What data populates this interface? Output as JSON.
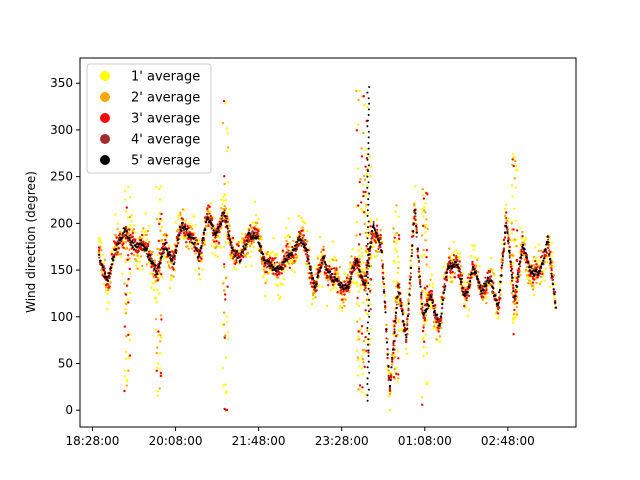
{
  "chart_data": {
    "type": "scatter",
    "title": "",
    "xlabel": "",
    "ylabel": "Wind direction (degree)",
    "x_ticks": [
      "18:28:00",
      "20:08:00",
      "21:48:00",
      "23:28:00",
      "01:08:00",
      "02:48:00"
    ],
    "x_tick_values": [
      "18:28:00",
      "20:08:00",
      "21:48:00",
      "23:28:00",
      "01:08:00",
      "02:48:00"
    ],
    "xlim": [
      "18:13:00",
      "04:10:00"
    ],
    "y_ticks": [
      0,
      50,
      100,
      150,
      200,
      250,
      300,
      350
    ],
    "ylim": [
      -18,
      377
    ],
    "grid": false,
    "legend_position": "top-left",
    "series": [
      {
        "name": "1' average",
        "color": "#ffff00"
      },
      {
        "name": "2' average",
        "color": "#ffa500"
      },
      {
        "name": "3' average",
        "color": "#ff0000"
      },
      {
        "name": "4' average",
        "color": "#a52a2a"
      },
      {
        "name": "5' average",
        "color": "#000000"
      }
    ],
    "trend": {
      "x": [
        "18:36:00",
        "18:46:00",
        "18:56:00",
        "19:06:00",
        "19:16:00",
        "19:26:00",
        "19:36:00",
        "19:46:00",
        "19:56:00",
        "20:06:00",
        "20:16:00",
        "20:26:00",
        "20:36:00",
        "20:46:00",
        "20:56:00",
        "21:06:00",
        "21:16:00",
        "21:26:00",
        "21:36:00",
        "21:46:00",
        "21:56:00",
        "22:06:00",
        "22:16:00",
        "22:26:00",
        "22:36:00",
        "22:46:00",
        "22:56:00",
        "23:06:00",
        "23:16:00",
        "23:26:00",
        "23:36:00",
        "23:46:00",
        "23:56:00",
        "00:06:00",
        "00:16:00",
        "00:26:00",
        "00:36:00",
        "00:46:00",
        "00:56:00",
        "01:06:00",
        "01:16:00",
        "01:26:00",
        "01:36:00",
        "01:46:00",
        "01:56:00",
        "02:06:00",
        "02:16:00",
        "02:26:00",
        "02:36:00",
        "02:46:00",
        "02:56:00",
        "03:06:00",
        "03:16:00",
        "03:26:00",
        "03:36:00",
        "03:46:00"
      ],
      "y": [
        160,
        140,
        170,
        195,
        175,
        180,
        165,
        150,
        175,
        160,
        200,
        185,
        165,
        205,
        190,
        210,
        175,
        160,
        190,
        185,
        160,
        150,
        155,
        165,
        185,
        170,
        130,
        165,
        140,
        135,
        130,
        165,
        130,
        200,
        170,
        25,
        130,
        80,
        215,
        100,
        120,
        90,
        155,
        160,
        120,
        150,
        130,
        140,
        110,
        200,
        120,
        175,
        150,
        145,
        185,
        105
      ]
    },
    "spikes": [
      {
        "x": "23:49:00",
        "ymin": 0,
        "ymax": 360
      },
      {
        "x": "23:56:00",
        "ymin": 5,
        "ymax": 345
      },
      {
        "x": "00:00:00",
        "ymin": 60,
        "ymax": 280
      },
      {
        "x": "00:34:00",
        "ymin": 30,
        "ymax": 220
      },
      {
        "x": "19:10:00",
        "ymin": 10,
        "ymax": 250
      },
      {
        "x": "19:48:00",
        "ymin": 15,
        "ymax": 240
      },
      {
        "x": "21:08:00",
        "ymin": 0,
        "ymax": 340
      },
      {
        "x": "01:08:00",
        "ymin": 0,
        "ymax": 240
      },
      {
        "x": "02:56:00",
        "ymin": 80,
        "ymax": 275
      }
    ]
  }
}
